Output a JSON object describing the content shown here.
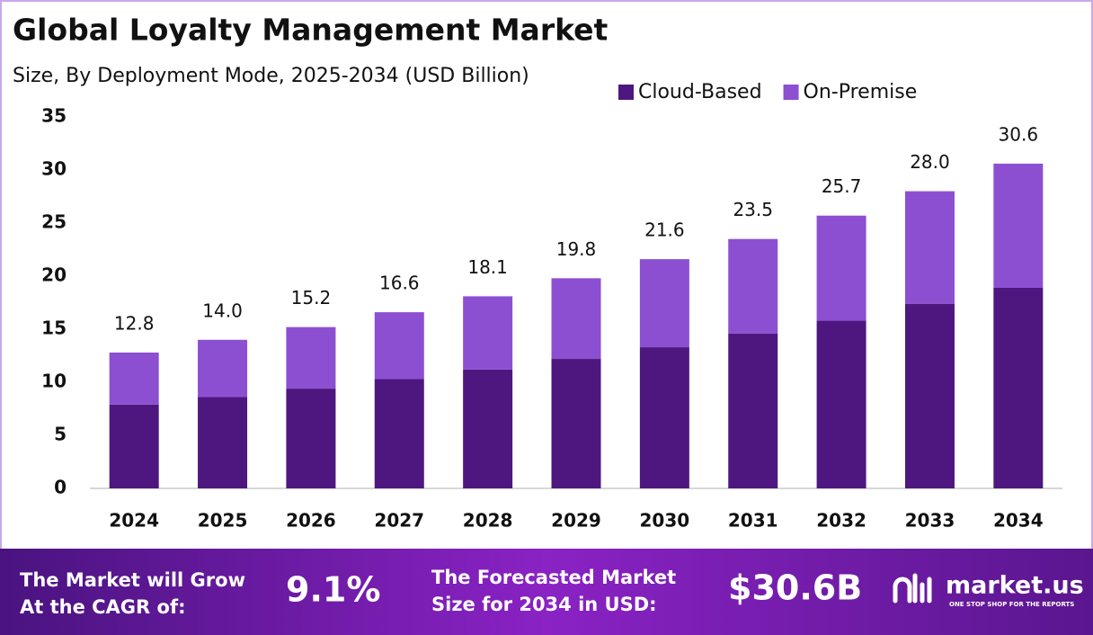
{
  "chart_data": {
    "type": "bar",
    "stacked": true,
    "title": "Global Loyalty Management Market",
    "subtitle": "Size, By Deployment Mode, 2025-2034 (USD Billion)",
    "categories": [
      "2024",
      "2025",
      "2026",
      "2027",
      "2028",
      "2029",
      "2030",
      "2031",
      "2032",
      "2033",
      "2034"
    ],
    "series": [
      {
        "name": "Cloud-Based",
        "color": "#4e1780",
        "values": [
          7.9,
          8.6,
          9.4,
          10.3,
          11.2,
          12.2,
          13.3,
          14.6,
          15.8,
          17.4,
          18.9
        ]
      },
      {
        "name": "On-Premise",
        "color": "#8c4fd1",
        "values": [
          4.9,
          5.4,
          5.8,
          6.3,
          6.9,
          7.6,
          8.3,
          8.9,
          9.9,
          10.6,
          11.7
        ]
      }
    ],
    "total_labels": [
      "12.8",
      "14.0",
      "15.2",
      "16.6",
      "18.1",
      "19.8",
      "21.6",
      "23.5",
      "25.7",
      "28.0",
      "30.6"
    ],
    "ylim": [
      0,
      35
    ],
    "yticks": [
      0,
      5,
      10,
      15,
      20,
      25,
      30,
      35
    ],
    "grid": false,
    "legend": "top-right"
  },
  "footer": {
    "cagr_text": [
      "The Market will Grow",
      "At the CAGR of:"
    ],
    "cagr_value": "9.1%",
    "size_text": [
      "The Forecasted Market",
      "Size for 2034 in USD:"
    ],
    "size_value": "$30.6B",
    "brand": "market.us",
    "tagline": "ONE STOP SHOP FOR THE REPORTS"
  }
}
